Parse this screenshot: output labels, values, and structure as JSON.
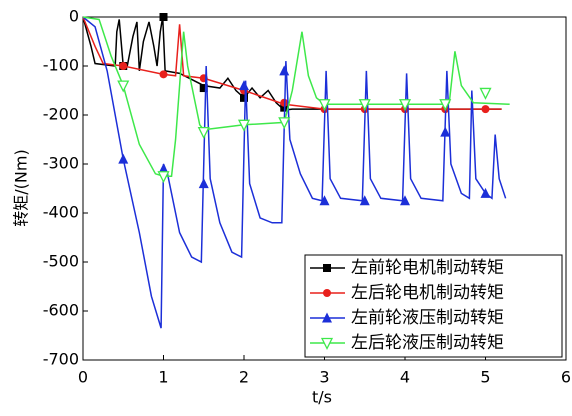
{
  "chart_data": {
    "type": "line",
    "xlabel": "t/s",
    "ylabel": "转矩/(Nm)",
    "xlim": [
      0,
      6
    ],
    "xticks": [
      0,
      1,
      2,
      3,
      4,
      5,
      6
    ],
    "ylim": [
      -700,
      0
    ],
    "yticks": [
      0,
      -100,
      -200,
      -300,
      -400,
      -500,
      -600,
      -700
    ],
    "legend": "lower right",
    "series": [
      {
        "name": "左前轮电机制动转矩",
        "color": "#000000",
        "marker": "square",
        "x": [
          0,
          0.1,
          0.15,
          0.4,
          0.42,
          0.45,
          0.5,
          0.55,
          0.62,
          0.67,
          0.7,
          0.75,
          0.82,
          0.88,
          0.92,
          0.96,
          0.99,
          1.02,
          1.2,
          1.5,
          1.7,
          1.8,
          1.9,
          2.0,
          2.1,
          2.2,
          2.3,
          2.4,
          2.5,
          2.6,
          5.2
        ],
        "values": [
          0,
          -60,
          -95,
          -100,
          -30,
          -5,
          -100,
          -100,
          -40,
          -10,
          -110,
          -50,
          -10,
          -60,
          -100,
          -30,
          0,
          -110,
          -115,
          -140,
          -145,
          -125,
          -150,
          -165,
          -145,
          -165,
          -150,
          -175,
          -190,
          -188,
          -188
        ],
        "marker_x": [
          0.5,
          1.0,
          1.5,
          2.0,
          2.5
        ],
        "marker_values": [
          -100,
          0,
          -145,
          -165,
          -185
        ]
      },
      {
        "name": "左后轮电机制动转矩",
        "color": "#e8201c",
        "marker": "circle",
        "x": [
          0,
          0.15,
          0.25,
          0.5,
          1.0,
          1.15,
          1.2,
          1.25,
          1.5,
          2.0,
          2.5,
          3.0,
          5.2
        ],
        "values": [
          0,
          -60,
          -95,
          -100,
          -117,
          -120,
          -15,
          -120,
          -125,
          -150,
          -178,
          -188,
          -188
        ],
        "marker_x": [
          0.5,
          1.0,
          1.5,
          2.0,
          2.5,
          3.0,
          3.5,
          4.0,
          4.5,
          5.0
        ],
        "marker_values": [
          -100,
          -117,
          -125,
          -150,
          -175,
          -188,
          -188,
          -188,
          -188,
          -188
        ]
      },
      {
        "name": "左前轮液压制动转矩",
        "color": "#1c2fd8",
        "marker": "triangle-up",
        "x": [
          0,
          0.15,
          0.3,
          0.5,
          0.7,
          0.85,
          0.97,
          1.0,
          1.05,
          1.2,
          1.35,
          1.47,
          1.53,
          1.58,
          1.7,
          1.85,
          1.97,
          2.02,
          2.07,
          2.2,
          2.35,
          2.47,
          2.52,
          2.57,
          2.7,
          2.85,
          2.97,
          3.02,
          3.07,
          3.2,
          3.47,
          3.52,
          3.57,
          3.7,
          3.97,
          4.02,
          4.07,
          4.2,
          4.47,
          4.52,
          4.57,
          4.7,
          4.8,
          4.83,
          4.88,
          5.0,
          5.08,
          5.12,
          5.17,
          5.25
        ],
        "values": [
          0,
          -20,
          -110,
          -290,
          -440,
          -570,
          -635,
          -300,
          -320,
          -440,
          -490,
          -500,
          -100,
          -330,
          -420,
          -480,
          -490,
          -130,
          -340,
          -410,
          -420,
          -420,
          -90,
          -250,
          -320,
          -370,
          -375,
          -110,
          -330,
          -370,
          -375,
          -110,
          -330,
          -370,
          -375,
          -115,
          -330,
          -370,
          -375,
          -110,
          -300,
          -360,
          -370,
          -150,
          -330,
          -360,
          -370,
          -240,
          -330,
          -370
        ],
        "marker_x": [
          0.5,
          1.0,
          1.5,
          2.0,
          2.5,
          3.0,
          3.5,
          4.0,
          4.5,
          5.0
        ],
        "marker_values": [
          -290,
          -310,
          -340,
          -140,
          -110,
          -375,
          -375,
          -375,
          -235,
          -360
        ]
      },
      {
        "name": "左后轮液压制动转矩",
        "color": "#3ee84a",
        "marker": "triangle-down",
        "x": [
          0,
          0.2,
          0.35,
          0.5,
          0.7,
          0.9,
          1.0,
          1.1,
          1.15,
          1.25,
          1.3,
          1.45,
          1.5,
          2.0,
          2.5,
          2.6,
          2.72,
          2.8,
          2.9,
          3.0,
          4.5,
          4.55,
          4.62,
          4.7,
          4.85,
          5.3
        ],
        "values": [
          0,
          -5,
          -80,
          -140,
          -260,
          -320,
          -325,
          -325,
          -250,
          -30,
          -100,
          -220,
          -230,
          -220,
          -215,
          -150,
          -30,
          -120,
          -165,
          -178,
          -178,
          -175,
          -70,
          -140,
          -175,
          -178
        ],
        "marker_x": [
          0.5,
          1.0,
          1.5,
          2.0,
          2.5,
          3.0,
          3.5,
          4.0,
          4.5,
          5.0
        ],
        "marker_values": [
          -140,
          -325,
          -235,
          -220,
          -215,
          -178,
          -178,
          -178,
          -178,
          -155
        ]
      }
    ]
  }
}
